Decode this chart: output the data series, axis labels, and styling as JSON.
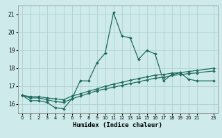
{
  "xlabel": "Humidex (Indice chaleur)",
  "ylabel": "",
  "background_color": "#ceeaea",
  "grid_color": "#aed0d0",
  "line_color": "#1e6b5e",
  "xlim": [
    -0.5,
    23.5
  ],
  "ylim": [
    15.5,
    21.5
  ],
  "yticks": [
    16,
    17,
    18,
    19,
    20,
    21
  ],
  "xtick_labels": [
    "0",
    "1",
    "2",
    "3",
    "4",
    "5",
    "6",
    "7",
    "8",
    "9",
    "10",
    "11",
    "12",
    "13",
    "14",
    "15",
    "16",
    "17",
    "18",
    "19",
    "20",
    "21",
    "23"
  ],
  "xtick_pos": [
    0,
    1,
    2,
    3,
    4,
    5,
    6,
    7,
    8,
    9,
    10,
    11,
    12,
    13,
    14,
    15,
    16,
    17,
    18,
    19,
    20,
    21,
    23
  ],
  "line1_x": [
    0,
    1,
    2,
    3,
    4,
    5,
    6,
    7,
    8,
    9,
    10,
    11,
    12,
    13,
    14,
    15,
    16,
    17,
    18,
    19,
    20,
    21,
    23
  ],
  "line1_y": [
    16.5,
    16.2,
    16.2,
    16.1,
    15.8,
    15.75,
    16.3,
    17.3,
    17.3,
    18.3,
    18.85,
    21.1,
    19.8,
    19.7,
    18.5,
    19.0,
    18.8,
    17.3,
    17.65,
    17.75,
    17.4,
    17.3,
    17.3
  ],
  "line2_x": [
    0,
    1,
    2,
    3,
    4,
    5,
    6,
    7,
    8,
    9,
    10,
    11,
    12,
    13,
    14,
    15,
    16,
    17,
    18,
    19,
    20,
    21,
    23
  ],
  "line2_y": [
    16.5,
    16.35,
    16.35,
    16.25,
    16.15,
    16.1,
    16.3,
    16.45,
    16.6,
    16.75,
    16.85,
    16.95,
    17.05,
    17.15,
    17.25,
    17.35,
    17.45,
    17.5,
    17.6,
    17.65,
    17.7,
    17.75,
    17.85
  ],
  "line3_x": [
    0,
    1,
    2,
    3,
    4,
    5,
    6,
    7,
    8,
    9,
    10,
    11,
    12,
    13,
    14,
    15,
    16,
    17,
    18,
    19,
    20,
    21,
    23
  ],
  "line3_y": [
    16.5,
    16.42,
    16.42,
    16.35,
    16.3,
    16.25,
    16.45,
    16.58,
    16.72,
    16.85,
    17.0,
    17.12,
    17.22,
    17.33,
    17.43,
    17.52,
    17.62,
    17.65,
    17.73,
    17.76,
    17.82,
    17.88,
    18.0
  ]
}
